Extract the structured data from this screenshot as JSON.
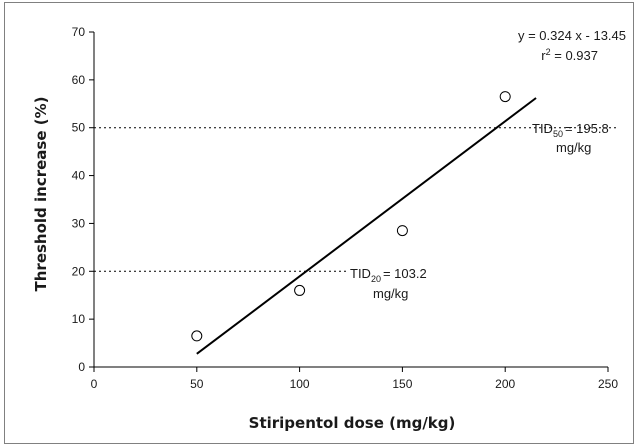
{
  "chart_data": {
    "type": "scatter",
    "title": "",
    "xlabel": "Stiripentol dose (mg/kg)",
    "ylabel": "Threshold increase (%)",
    "xlim": [
      0,
      250
    ],
    "ylim": [
      0,
      70
    ],
    "x_ticks": [
      "0",
      "50",
      "100",
      "150",
      "200",
      "250"
    ],
    "y_ticks": [
      "0",
      "10",
      "20",
      "30",
      "40",
      "50",
      "60",
      "70"
    ],
    "grid": false,
    "points": [
      {
        "x": 50,
        "y": 6.5
      },
      {
        "x": 100,
        "y": 16
      },
      {
        "x": 150,
        "y": 28.5
      },
      {
        "x": 200,
        "y": 56.5
      }
    ],
    "regression": {
      "slope": 0.324,
      "intercept": -13.45,
      "x_start": 50,
      "x_end": 215,
      "equation_text": "y = 0.324 x - 13.45",
      "r2_prefix": "r",
      "r2_sup": "2",
      "r2_suffix": " = 0.937"
    },
    "reference_lines": [
      {
        "y": 50,
        "x_end": 195.8,
        "label_base": "TID",
        "label_sub": "50",
        "label_value": "= 195.8",
        "label_unit": "mg/kg"
      },
      {
        "y": 20,
        "x_end": 103.2,
        "label_base": "TID",
        "label_sub": "20",
        "label_value": "= 103.2",
        "label_unit": "mg/kg"
      }
    ]
  }
}
